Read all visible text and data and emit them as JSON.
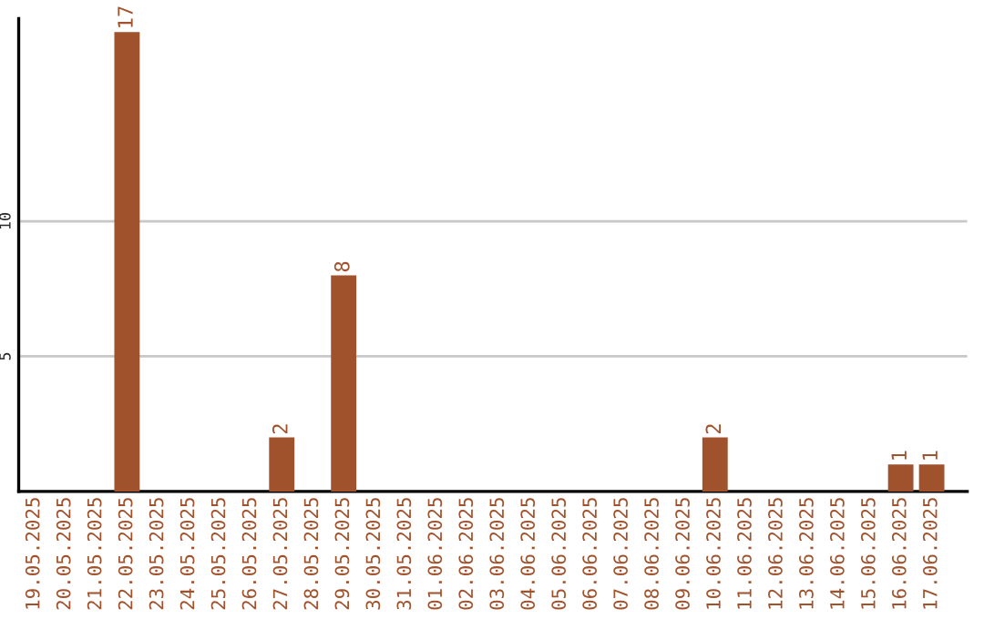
{
  "chart_data": {
    "type": "bar",
    "categories": [
      "19.05.2025",
      "20.05.2025",
      "21.05.2025",
      "22.05.2025",
      "23.05.2025",
      "24.05.2025",
      "25.05.2025",
      "26.05.2025",
      "27.05.2025",
      "28.05.2025",
      "29.05.2025",
      "30.05.2025",
      "31.05.2025",
      "01.06.2025",
      "02.06.2025",
      "03.06.2025",
      "04.06.2025",
      "05.06.2025",
      "06.06.2025",
      "07.06.2025",
      "08.06.2025",
      "09.06.2025",
      "10.06.2025",
      "11.06.2025",
      "12.06.2025",
      "13.06.2025",
      "14.06.2025",
      "15.06.2025",
      "16.06.2025",
      "17.06.2025"
    ],
    "values": [
      0,
      0,
      0,
      17,
      0,
      0,
      0,
      0,
      2,
      0,
      8,
      0,
      0,
      0,
      0,
      0,
      0,
      0,
      0,
      0,
      0,
      0,
      2,
      0,
      0,
      0,
      0,
      0,
      1,
      1
    ],
    "value_labels": [
      null,
      null,
      null,
      "17",
      null,
      null,
      null,
      null,
      "2",
      null,
      "8",
      null,
      null,
      null,
      null,
      null,
      null,
      null,
      null,
      null,
      null,
      null,
      "2",
      null,
      null,
      null,
      null,
      null,
      "1",
      "1"
    ],
    "color": "#a0522d",
    "ylim": [
      0,
      17.5
    ],
    "yticks": [
      5,
      10
    ],
    "grid": "y"
  }
}
